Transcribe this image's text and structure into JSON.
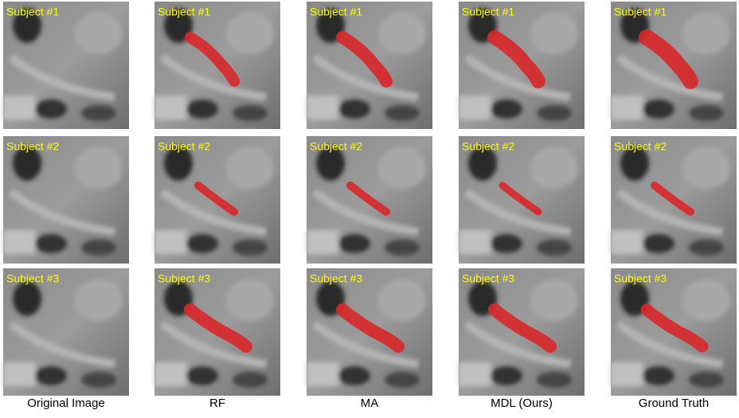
{
  "columns": [
    "Original Image",
    "RF",
    "MA",
    "MDL (Ours)",
    "Ground Truth"
  ],
  "rows": [
    {
      "label": "Subject #1"
    },
    {
      "label": "Subject #2"
    },
    {
      "label": "Subject #3"
    }
  ]
}
